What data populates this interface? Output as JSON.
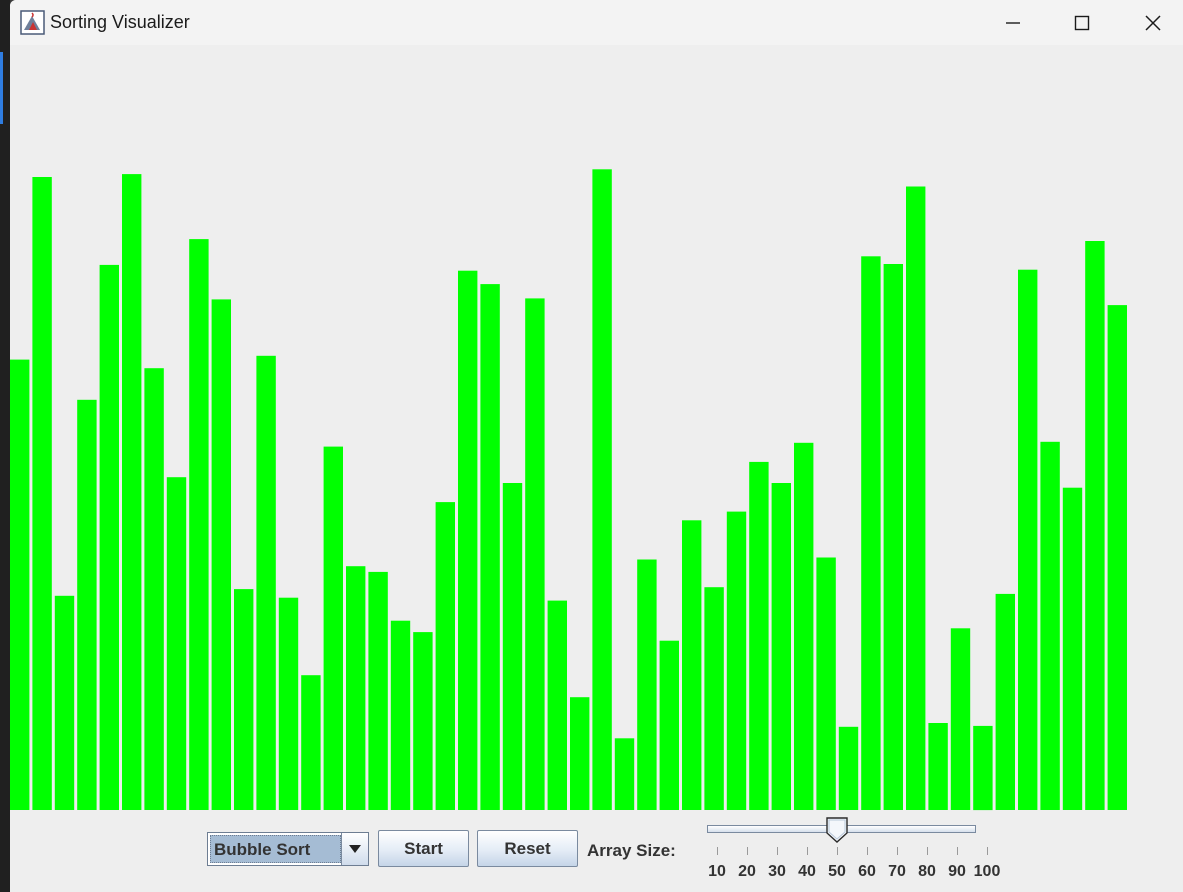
{
  "window": {
    "title": "Sorting Visualizer",
    "icon": "java-app-icon",
    "minimize_icon": "minimize-icon",
    "maximize_icon": "maximize-icon",
    "close_icon": "close-icon"
  },
  "chart_data": {
    "type": "bar",
    "color": "#00ff00",
    "values": [
      471,
      662,
      224,
      429,
      570,
      665,
      462,
      348,
      597,
      534,
      231,
      475,
      222,
      141,
      380,
      255,
      249,
      198,
      186,
      322,
      564,
      550,
      342,
      535,
      219,
      118,
      670,
      75,
      262,
      177,
      303,
      233,
      312,
      364,
      342,
      384,
      264,
      87,
      579,
      571,
      652,
      91,
      190,
      88,
      226,
      565,
      385,
      337,
      595,
      528
    ],
    "ylim": [
      0,
      800
    ]
  },
  "controls": {
    "algorithm_select": {
      "selected": "Bubble Sort",
      "arrow_icon": "chevron-down-icon"
    },
    "start_label": "Start",
    "reset_label": "Reset",
    "array_size_label": "Array Size:",
    "slider": {
      "min": 10,
      "max": 100,
      "value": 50,
      "tick_labels": [
        "10",
        "20",
        "30",
        "40",
        "50",
        "60",
        "70",
        "80",
        "90",
        "100"
      ]
    }
  }
}
